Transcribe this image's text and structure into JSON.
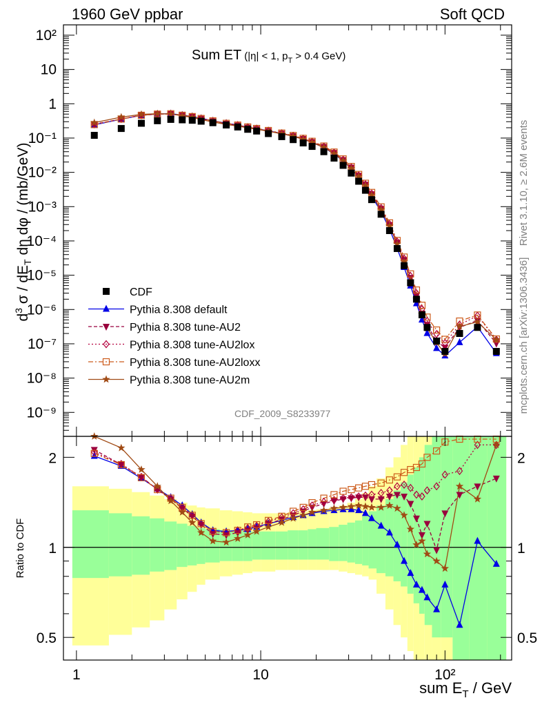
{
  "header": {
    "left": "1960 GeV ppbar",
    "right": "Soft QCD"
  },
  "side_text": {
    "rivet": "Rivet 3.1.10, ≥ 2.6M events",
    "mcplots": "mcplots.cern.ch [arXiv:1306.3436]"
  },
  "watermark": "CDF_2009_S8233977",
  "colors": {
    "CDF": "#000000",
    "default": "#0000e6",
    "AU2": "#99003d",
    "AU2lox": "#b3003d",
    "AU2loxx": "#cc5a1a",
    "AU2m": "#a04a14",
    "band_yellow": "#ffff99",
    "band_green": "#99ff99"
  },
  "chart_data": [
    {
      "type": "scatter",
      "panel": "main",
      "title": "Sum ET",
      "title_suffix": "(|η| < 1, p",
      "title_sub": "T",
      "title_tail": " > 0.4 GeV)",
      "xlabel": "sum E",
      "xlabel_sub": "T",
      "xlabel_tail": " / GeV",
      "ylabel": "d³σ / dE_T dη dφ / (mb/GeV)",
      "xscale": "log",
      "yscale": "log",
      "xlim": [
        0.85,
        230
      ],
      "ylim": [
        2e-10,
        200
      ],
      "x_tick_labels": [
        "1",
        "10",
        "10²"
      ],
      "y_tick_labels": [
        "10²",
        "10",
        "1",
        "10⁻¹",
        "10⁻²",
        "10⁻³",
        "10⁻⁴",
        "10⁻⁵",
        "10⁻⁶",
        "10⁻⁷",
        "10⁻⁸",
        "10⁻⁹"
      ],
      "x": [
        1.25,
        1.75,
        2.25,
        2.75,
        3.25,
        3.75,
        4.25,
        4.75,
        5.5,
        6.5,
        7.5,
        8.5,
        9.5,
        11,
        13,
        15,
        17,
        19,
        22,
        25,
        28,
        31,
        34,
        37,
        40,
        45,
        50,
        55,
        60,
        65,
        70,
        75,
        80,
        90,
        100,
        120,
        150,
        190
      ],
      "cdf": [
        0.12,
        0.19,
        0.27,
        0.32,
        0.35,
        0.34,
        0.33,
        0.31,
        0.28,
        0.24,
        0.21,
        0.18,
        0.16,
        0.135,
        0.11,
        0.09,
        0.072,
        0.057,
        0.04,
        0.026,
        0.016,
        0.0095,
        0.0055,
        0.003,
        0.0016,
        0.0006,
        0.0002,
        6e-05,
        1.9e-05,
        6e-06,
        2e-06,
        7e-07,
        3e-07,
        1.2e-07,
        6e-08,
        2e-07,
        3e-07,
        6e-08
      ],
      "legend": [
        {
          "key": "CDF",
          "label": "CDF"
        },
        {
          "key": "default",
          "label": "Pythia 8.308 default"
        },
        {
          "key": "AU2",
          "label": "Pythia 8.308 tune-AU2"
        },
        {
          "key": "AU2lox",
          "label": "Pythia 8.308 tune-AU2lox"
        },
        {
          "key": "AU2loxx",
          "label": "Pythia 8.308 tune-AU2loxx"
        },
        {
          "key": "AU2m",
          "label": "Pythia 8.308 tune-AU2m"
        }
      ]
    },
    {
      "type": "line",
      "panel": "ratio",
      "ylabel": "Ratio to CDF",
      "ylim": [
        0.42,
        2.35
      ],
      "y_tick_labels": [
        "0.5",
        "1",
        "2"
      ],
      "x": [
        1.25,
        1.75,
        2.25,
        2.75,
        3.25,
        3.75,
        4.25,
        4.75,
        5.5,
        6.5,
        7.5,
        8.5,
        9.5,
        11,
        13,
        15,
        17,
        19,
        22,
        25,
        28,
        31,
        34,
        37,
        40,
        45,
        50,
        55,
        60,
        65,
        70,
        75,
        80,
        90,
        100,
        120,
        150,
        190
      ],
      "series": [
        {
          "key": "default",
          "name": "Pythia 8.308 default",
          "marker": "triangle-up",
          "values": [
            2.02,
            1.87,
            1.7,
            1.57,
            1.47,
            1.38,
            1.29,
            1.21,
            1.14,
            1.13,
            1.14,
            1.15,
            1.17,
            1.2,
            1.23,
            1.26,
            1.28,
            1.3,
            1.32,
            1.33,
            1.34,
            1.34,
            1.33,
            1.3,
            1.25,
            1.18,
            1.12,
            1.02,
            0.9,
            0.82,
            0.75,
            0.72,
            0.68,
            0.62,
            0.75,
            0.55,
            1.05,
            0.88
          ]
        },
        {
          "key": "AU2",
          "name": "Pythia 8.308 tune-AU2",
          "marker": "triangle-down",
          "values": [
            2.12,
            1.89,
            1.72,
            1.56,
            1.45,
            1.35,
            1.27,
            1.19,
            1.11,
            1.1,
            1.12,
            1.14,
            1.16,
            1.2,
            1.24,
            1.28,
            1.32,
            1.36,
            1.4,
            1.43,
            1.45,
            1.46,
            1.47,
            1.47,
            1.45,
            1.45,
            1.48,
            1.5,
            1.48,
            1.4,
            1.25,
            1.1,
            1.2,
            0.98,
            1.3,
            1.5,
            1.6,
            1.7
          ]
        },
        {
          "key": "AU2lox",
          "name": "Pythia 8.308 tune-AU2lox",
          "marker": "diamond",
          "values": [
            2.08,
            1.9,
            1.72,
            1.56,
            1.46,
            1.36,
            1.28,
            1.2,
            1.13,
            1.12,
            1.14,
            1.16,
            1.18,
            1.22,
            1.26,
            1.3,
            1.34,
            1.38,
            1.42,
            1.44,
            1.46,
            1.47,
            1.48,
            1.49,
            1.5,
            1.52,
            1.55,
            1.6,
            1.62,
            1.58,
            1.5,
            1.48,
            1.55,
            1.6,
            1.75,
            1.8,
            2.2,
            2.2
          ]
        },
        {
          "key": "AU2loxx",
          "name": "Pythia 8.308 tune-AU2loxx",
          "marker": "square-open",
          "values": [
            2.06,
            1.89,
            1.71,
            1.56,
            1.46,
            1.36,
            1.28,
            1.2,
            1.13,
            1.12,
            1.14,
            1.17,
            1.19,
            1.23,
            1.27,
            1.32,
            1.36,
            1.41,
            1.46,
            1.5,
            1.54,
            1.56,
            1.58,
            1.6,
            1.62,
            1.64,
            1.68,
            1.72,
            1.78,
            1.82,
            1.85,
            1.9,
            2.0,
            2.1,
            2.25,
            2.3,
            2.3,
            2.3
          ]
        },
        {
          "key": "AU2m",
          "name": "Pythia 8.308 tune-AU2m",
          "marker": "star",
          "values": [
            2.35,
            2.15,
            1.82,
            1.6,
            1.43,
            1.31,
            1.21,
            1.12,
            1.05,
            1.04,
            1.07,
            1.1,
            1.13,
            1.17,
            1.21,
            1.25,
            1.28,
            1.31,
            1.33,
            1.35,
            1.36,
            1.37,
            1.38,
            1.37,
            1.36,
            1.36,
            1.38,
            1.35,
            1.28,
            1.15,
            1.02,
            1.05,
            0.95,
            0.9,
            0.85,
            1.6,
            1.45,
            2.2
          ]
        }
      ],
      "bands": {
        "edges": [
          0.95,
          1.5,
          2.0,
          2.5,
          3.0,
          3.5,
          4.0,
          4.5,
          5.0,
          6.0,
          7.0,
          8.0,
          9.0,
          10.0,
          12,
          14,
          16,
          18,
          20,
          23.5,
          26.5,
          29.5,
          32.5,
          35.5,
          38.5,
          42.5,
          47.5,
          52.5,
          57.5,
          62.5,
          67.5,
          72.5,
          77.5,
          85,
          95,
          110,
          135,
          170,
          215
        ],
        "yellow_lo": [
          0.47,
          0.51,
          0.54,
          0.57,
          0.62,
          0.67,
          0.71,
          0.75,
          0.78,
          0.8,
          0.81,
          0.82,
          0.83,
          0.83,
          0.84,
          0.84,
          0.84,
          0.84,
          0.84,
          0.84,
          0.83,
          0.82,
          0.81,
          0.8,
          0.78,
          0.7,
          0.62,
          0.55,
          0.5,
          0.45,
          0.4,
          0.4,
          0.4,
          0.4,
          0.4,
          0.4,
          0.4,
          0.4
        ],
        "yellow_hi": [
          1.6,
          1.57,
          1.53,
          1.49,
          1.45,
          1.41,
          1.38,
          1.36,
          1.35,
          1.33,
          1.32,
          1.31,
          1.3,
          1.3,
          1.3,
          1.31,
          1.32,
          1.33,
          1.34,
          1.36,
          1.38,
          1.41,
          1.45,
          1.52,
          1.6,
          1.7,
          1.85,
          2.0,
          2.2,
          2.35,
          2.35,
          2.35,
          2.35,
          2.35,
          2.35,
          2.35,
          2.35,
          2.35
        ],
        "green_lo": [
          0.79,
          0.8,
          0.81,
          0.83,
          0.84,
          0.86,
          0.87,
          0.88,
          0.89,
          0.9,
          0.9,
          0.9,
          0.91,
          0.91,
          0.91,
          0.91,
          0.91,
          0.91,
          0.91,
          0.9,
          0.9,
          0.89,
          0.88,
          0.87,
          0.85,
          0.82,
          0.8,
          0.77,
          0.74,
          0.7,
          0.65,
          0.6,
          0.55,
          0.5,
          0.5,
          0.42,
          0.42,
          0.42
        ],
        "green_hi": [
          1.33,
          1.3,
          1.27,
          1.25,
          1.22,
          1.2,
          1.18,
          1.16,
          1.15,
          1.14,
          1.14,
          1.13,
          1.13,
          1.13,
          1.13,
          1.14,
          1.14,
          1.15,
          1.16,
          1.17,
          1.19,
          1.21,
          1.23,
          1.27,
          1.32,
          1.38,
          1.45,
          1.55,
          1.65,
          1.75,
          1.85,
          2.0,
          2.2,
          2.35,
          2.35,
          2.35,
          2.35,
          2.35
        ]
      }
    }
  ]
}
